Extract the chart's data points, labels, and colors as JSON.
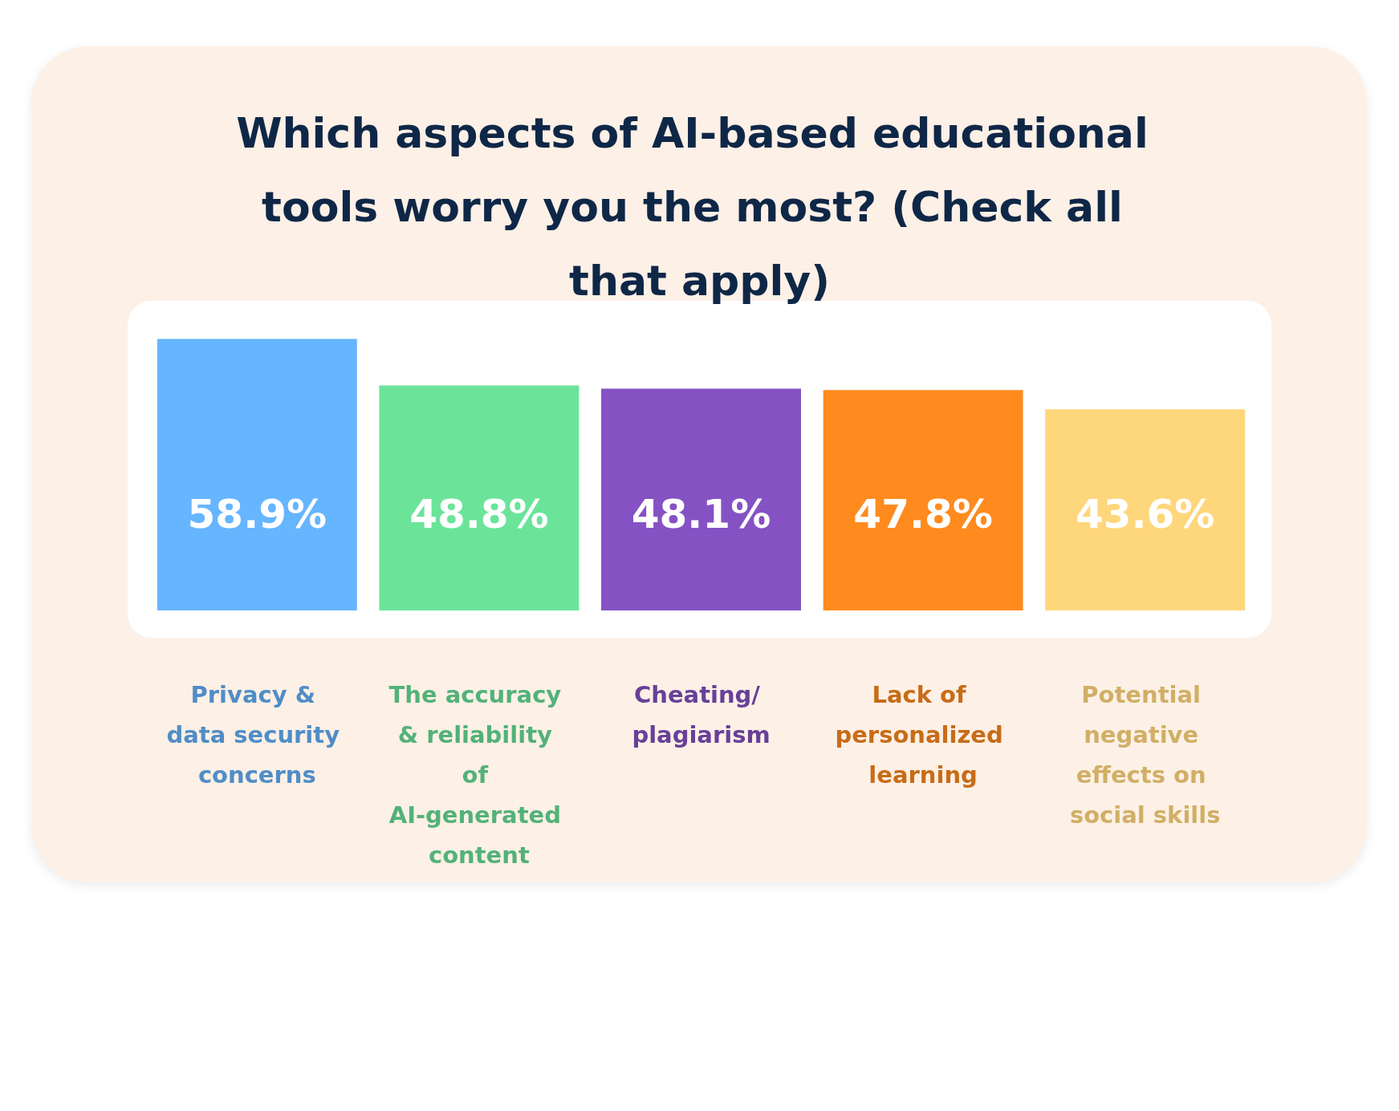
{
  "chart_data": {
    "type": "bar",
    "title": "Which aspects of AI-based educational tools worry you the most? (Check all that apply)",
    "categories": [
      "Privacy & data security concerns",
      "The accuracy & reliability of AI-generated content",
      "Cheating/ plagiarism",
      "Lack of personalized learning",
      "Potential negative effects on social skills"
    ],
    "values": [
      58.9,
      48.8,
      48.1,
      47.8,
      43.6
    ],
    "colors": [
      "#66b5ff",
      "#6be49a",
      "#8552c4",
      "#ff8b1e",
      "#fed67b"
    ],
    "value_labels": [
      "58.9%",
      "48.8%",
      "48.1%",
      "47.8%",
      "43.6%"
    ]
  }
}
